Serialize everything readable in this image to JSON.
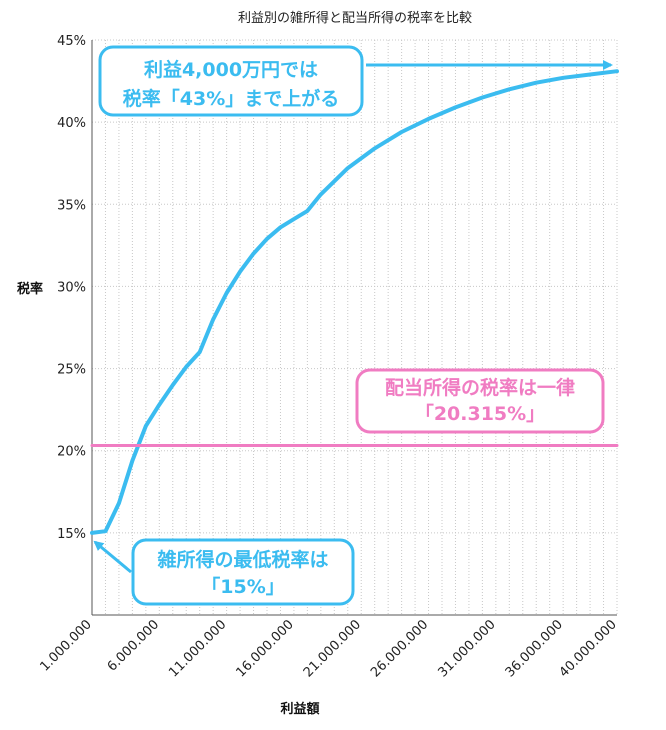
{
  "chart_data": {
    "type": "line",
    "title": "利益別の雑所得と配当所得の税率を比較",
    "xlabel": "利益額",
    "ylabel": "税率",
    "xlim": [
      1000000,
      40000000
    ],
    "ylim": [
      10,
      45
    ],
    "x_ticks": [
      "1.000.000",
      "6.000.000",
      "11.000.000",
      "16.000.000",
      "21.000.000",
      "26.000.000",
      "31.000.000",
      "36.000.000",
      "40.000.000"
    ],
    "y_ticks": [
      "15%",
      "20%",
      "25%",
      "30%",
      "35%",
      "40%",
      "45%"
    ],
    "grid": true,
    "series": [
      {
        "color": "#3bbcf0",
        "x": [
          1000000,
          2000000,
          3000000,
          4000000,
          5000000,
          6000000,
          7000000,
          8000000,
          9000000,
          10000000,
          11000000,
          12000000,
          13000000,
          14000000,
          15000000,
          16000000,
          17000000,
          18000000,
          20000000,
          22000000,
          24000000,
          26000000,
          28000000,
          30000000,
          32000000,
          34000000,
          36000000,
          38000000,
          40000000
        ],
        "y": [
          15.0,
          15.1,
          16.8,
          19.4,
          21.5,
          22.8,
          24.0,
          25.1,
          26.0,
          28.0,
          29.6,
          30.9,
          32.0,
          32.9,
          33.6,
          34.1,
          34.6,
          35.6,
          37.2,
          38.4,
          39.4,
          40.2,
          40.9,
          41.5,
          42.0,
          42.4,
          42.7,
          42.9,
          43.1
        ]
      },
      {
        "color": "#f07cc2",
        "x": [
          1000000,
          40000000
        ],
        "y": [
          20.315,
          20.315
        ]
      }
    ],
    "annotations": [
      {
        "id": "top",
        "color": "#3bbcf0",
        "lines": [
          "利益4,000万円では",
          "税率「43%」まで上がる"
        ]
      },
      {
        "id": "bottom",
        "color": "#3bbcf0",
        "lines": [
          "雑所得の最低税率は",
          "「15%」"
        ]
      },
      {
        "id": "pink",
        "color": "#f07cc2",
        "lines": [
          "配当所得の税率は一律",
          "「20.315%」"
        ]
      }
    ]
  }
}
